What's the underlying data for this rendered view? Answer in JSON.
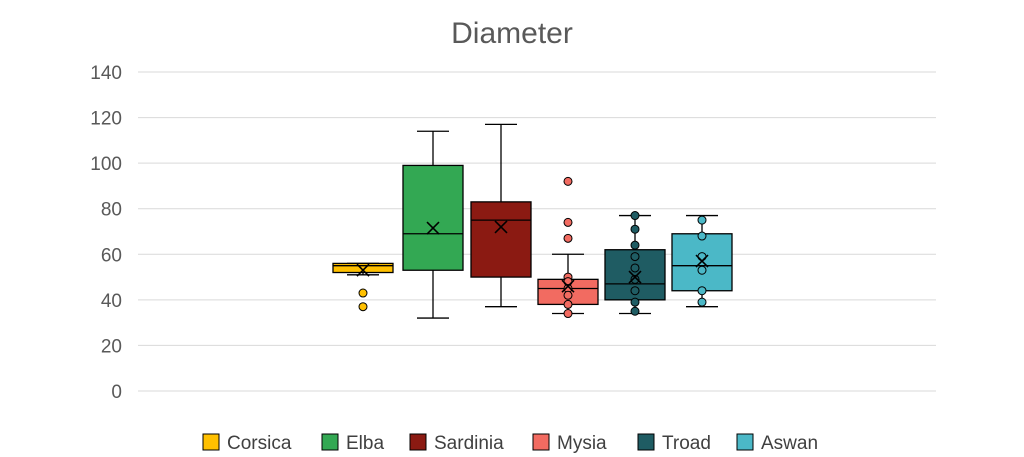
{
  "chart_data": {
    "type": "box",
    "title": "Diameter",
    "xlabel": "",
    "ylabel": "",
    "ylim": [
      0,
      140
    ],
    "yticks": [
      0,
      20,
      40,
      60,
      80,
      100,
      120,
      140
    ],
    "grid": true,
    "legend_position": "bottom",
    "series": [
      {
        "name": "Corsica",
        "color": "#FFC000",
        "whisker_low": 51,
        "q1": 52,
        "median": 55,
        "q3": 56,
        "whisker_high": 56,
        "mean": 53,
        "points": [
          37,
          43
        ]
      },
      {
        "name": "Elba",
        "color": "#33A853",
        "whisker_low": 32,
        "q1": 53,
        "median": 69,
        "q3": 99,
        "whisker_high": 114,
        "mean": 71.5,
        "points": []
      },
      {
        "name": "Sardinia",
        "color": "#8B1A12",
        "whisker_low": 37,
        "q1": 50,
        "median": 75,
        "q3": 83,
        "whisker_high": 117,
        "mean": 72,
        "points": []
      },
      {
        "name": "Mysia",
        "color": "#F26B61",
        "whisker_low": 34,
        "q1": 38,
        "median": 45,
        "q3": 49,
        "whisker_high": 60,
        "mean": 46,
        "points": [
          92,
          74,
          67,
          50,
          48,
          45,
          42,
          38,
          34
        ]
      },
      {
        "name": "Troad",
        "color": "#1F5C63",
        "whisker_low": 34,
        "q1": 40,
        "median": 47,
        "q3": 62,
        "whisker_high": 77,
        "mean": 50,
        "points": [
          77,
          71,
          64,
          59,
          54,
          49,
          44,
          39,
          35
        ]
      },
      {
        "name": "Aswan",
        "color": "#4BB8C7",
        "whisker_low": 37,
        "q1": 44,
        "median": 55,
        "q3": 69,
        "whisker_high": 77,
        "mean": 57,
        "points": [
          75,
          68,
          59,
          53,
          44,
          39
        ]
      }
    ]
  }
}
